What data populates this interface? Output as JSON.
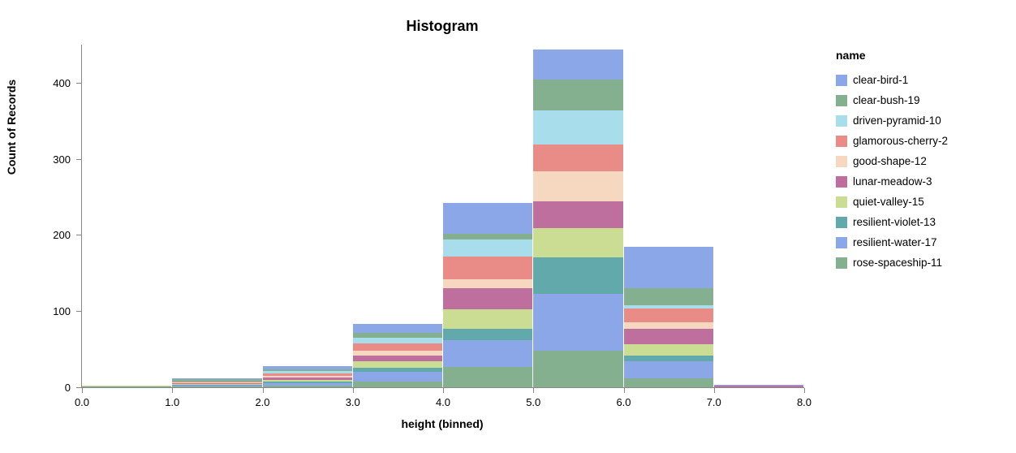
{
  "chart_data": {
    "type": "bar",
    "stacked": true,
    "title": "Histogram",
    "xlabel": "height (binned)",
    "ylabel": "Count of Records",
    "legend_title": "name",
    "legend_position": "right",
    "grid": false,
    "bin_edges": [
      0,
      1,
      2,
      3,
      4,
      5,
      6,
      7,
      8
    ],
    "x_tick_labels": [
      "0.0",
      "1.0",
      "2.0",
      "3.0",
      "4.0",
      "5.0",
      "6.0",
      "7.0",
      "8.0"
    ],
    "y_ticks": [
      0,
      100,
      200,
      300,
      400
    ],
    "y_tick_labels": [
      "0",
      "100",
      "200",
      "300",
      "400"
    ],
    "ylim": [
      0,
      450
    ],
    "stack_order": "reverse-legend (last legend entry at bottom of stack, first on top)",
    "bin_totals": [
      2,
      12,
      28,
      83,
      242,
      444,
      185,
      3
    ],
    "series": [
      {
        "name": "clear-bird-1",
        "color": "#8CA7E8",
        "values": [
          0,
          1,
          5,
          12,
          40,
          40,
          55,
          1
        ]
      },
      {
        "name": "clear-bush-19",
        "color": "#84B08F",
        "values": [
          0,
          3,
          2,
          6,
          8,
          40,
          22,
          0
        ]
      },
      {
        "name": "driven-pyramid-10",
        "color": "#A8DEEB",
        "values": [
          0,
          1,
          3,
          7,
          22,
          45,
          5,
          0
        ]
      },
      {
        "name": "glamorous-cherry-2",
        "color": "#E98C88",
        "values": [
          0,
          1,
          3,
          10,
          30,
          35,
          18,
          0
        ]
      },
      {
        "name": "good-shape-12",
        "color": "#F6D8C1",
        "values": [
          0,
          1,
          2,
          6,
          12,
          40,
          8,
          0
        ]
      },
      {
        "name": "lunar-meadow-3",
        "color": "#BF6F9D",
        "values": [
          0,
          1,
          3,
          8,
          28,
          35,
          20,
          2
        ]
      },
      {
        "name": "quiet-valley-15",
        "color": "#CADD92",
        "values": [
          1,
          1,
          3,
          8,
          25,
          38,
          15,
          0
        ]
      },
      {
        "name": "resilient-violet-13",
        "color": "#62A9AB",
        "values": [
          0,
          1,
          2,
          6,
          15,
          48,
          8,
          0
        ]
      },
      {
        "name": "resilient-water-17",
        "color": "#8CA7E8",
        "values": [
          0,
          1,
          3,
          12,
          35,
          75,
          22,
          0
        ]
      },
      {
        "name": "rose-spaceship-11",
        "color": "#84B08F",
        "values": [
          1,
          1,
          2,
          8,
          27,
          48,
          12,
          0
        ]
      }
    ],
    "axis_color": "#888888",
    "label_color": "#000000"
  }
}
